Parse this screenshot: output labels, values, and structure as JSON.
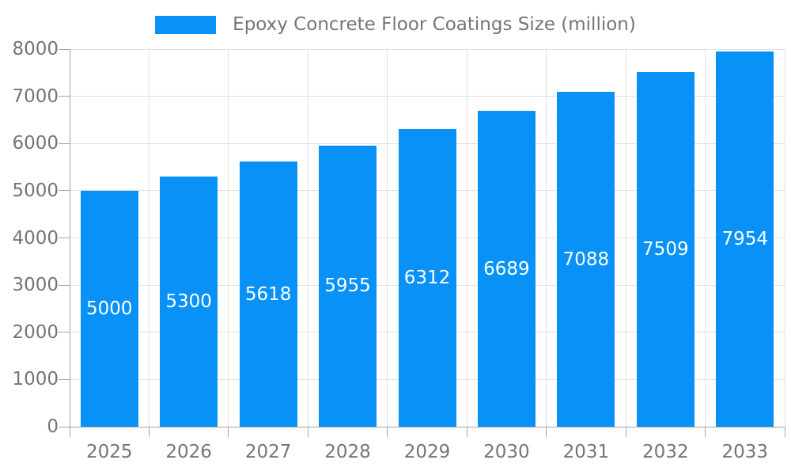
{
  "chart_data": {
    "type": "bar",
    "title": "Epoxy Concrete Floor Coatings Size (million)",
    "categories": [
      "2025",
      "2026",
      "2027",
      "2028",
      "2029",
      "2030",
      "2031",
      "2032",
      "2033"
    ],
    "values": [
      5000,
      5300,
      5618,
      5955,
      6312,
      6689,
      7088,
      7509,
      7954
    ],
    "value_labels": [
      "5000",
      "5300",
      "5618",
      "5955",
      "6312",
      "6689",
      "7088",
      "7509",
      "7954"
    ],
    "title_text": "",
    "xlabel": "",
    "ylabel": "",
    "ylim": [
      0,
      8000
    ],
    "ytick_step": 1000,
    "ytick_labels": [
      "0",
      "1000",
      "2000",
      "3000",
      "4000",
      "5000",
      "6000",
      "7000",
      "8000"
    ],
    "grid": true,
    "legend_position": "top",
    "legend_entries": [
      "Epoxy Concrete Floor Coatings Size (million)"
    ]
  },
  "colors": {
    "bar": "#0892f8",
    "grid": "#e0e0e0",
    "axis": "#a5a5a5",
    "text": "#757575",
    "value_label": "#ffffff",
    "background": "#ffffff"
  }
}
